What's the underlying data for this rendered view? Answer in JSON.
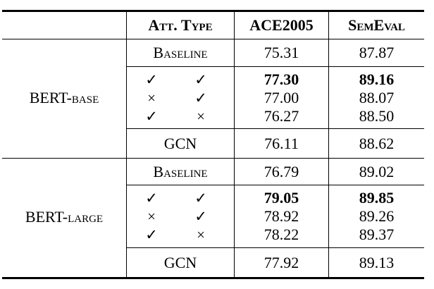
{
  "colors": {
    "text": "#000000",
    "rule": "#000000",
    "background": "#ffffff"
  },
  "icons": {
    "check": "✓",
    "cross": "×"
  },
  "table": {
    "headers": {
      "att_type": "Att. Type",
      "ace2005": "ACE2005",
      "semeval": "SemEval"
    },
    "sections": [
      {
        "model": "BERT-base",
        "baseline": {
          "label": "Baseline",
          "ace": "75.31",
          "sem": "87.87"
        },
        "variants": [
          {
            "att1": "✓",
            "att2": "✓",
            "ace": "77.30",
            "sem": "89.16"
          },
          {
            "att1": "×",
            "att2": "✓",
            "ace": "77.00",
            "sem": "88.07"
          },
          {
            "att1": "✓",
            "att2": "×",
            "ace": "76.27",
            "sem": "88.50"
          }
        ],
        "gcn": {
          "label": "GCN",
          "ace": "76.11",
          "sem": "88.62"
        }
      },
      {
        "model": "BERT-large",
        "baseline": {
          "label": "Baseline",
          "ace": "76.79",
          "sem": "89.02"
        },
        "variants": [
          {
            "att1": "✓",
            "att2": "✓",
            "ace": "79.05",
            "sem": "89.85"
          },
          {
            "att1": "×",
            "att2": "✓",
            "ace": "78.92",
            "sem": "89.26"
          },
          {
            "att1": "✓",
            "att2": "×",
            "ace": "78.22",
            "sem": "89.37"
          }
        ],
        "gcn": {
          "label": "GCN",
          "ace": "77.92",
          "sem": "89.13"
        }
      }
    ]
  }
}
